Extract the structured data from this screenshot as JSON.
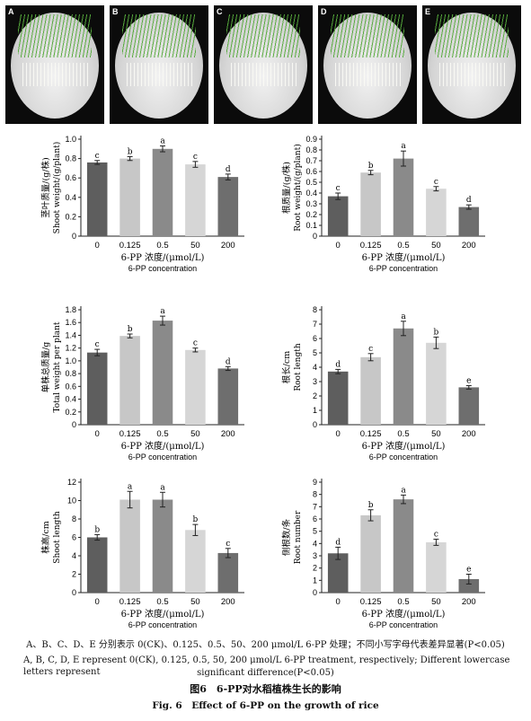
{
  "photos": [
    {
      "label": "A"
    },
    {
      "label": "B"
    },
    {
      "label": "C"
    },
    {
      "label": "D"
    },
    {
      "label": "E"
    }
  ],
  "chart_data": [
    {
      "type": "bar",
      "categories": [
        "0",
        "0.125",
        "0.5",
        "50",
        "200"
      ],
      "values": [
        0.76,
        0.8,
        0.9,
        0.74,
        0.61
      ],
      "errors": [
        0.02,
        0.02,
        0.03,
        0.03,
        0.03
      ],
      "letters": [
        "c",
        "b",
        "a",
        "c",
        "d"
      ],
      "colors": [
        "#5e5e5e",
        "#c7c7c7",
        "#8a8a8a",
        "#d6d6d6",
        "#6e6e6e"
      ],
      "ylabel_cn": "茎叶质量/(g/株)",
      "ylabel_en": "Shoot weight/(g/plant)",
      "xlabel_cn": "6-PP 浓度/(μmol/L)",
      "xlabel_en": "6-PP concentration",
      "ylim": [
        0,
        1.0
      ],
      "yticks": [
        "0",
        "0.2",
        "0.4",
        "0.6",
        "0.8",
        "1.0"
      ]
    },
    {
      "type": "bar",
      "categories": [
        "0",
        "0.125",
        "0.5",
        "50",
        "200"
      ],
      "values": [
        0.37,
        0.59,
        0.72,
        0.44,
        0.27
      ],
      "errors": [
        0.03,
        0.02,
        0.07,
        0.02,
        0.02
      ],
      "letters": [
        "c",
        "b",
        "a",
        "c",
        "d"
      ],
      "colors": [
        "#5e5e5e",
        "#c7c7c7",
        "#8a8a8a",
        "#d6d6d6",
        "#6e6e6e"
      ],
      "ylabel_cn": "根质量/(g/株)",
      "ylabel_en": "Root weight/(g/plant)",
      "xlabel_cn": "6-PP 浓度/(μmol/L)",
      "xlabel_en": "6-PP concentration",
      "ylim": [
        0,
        0.9
      ],
      "yticks": [
        "0",
        "0.1",
        "0.2",
        "0.3",
        "0.4",
        "0.5",
        "0.6",
        "0.7",
        "0.8",
        "0.9"
      ]
    },
    {
      "type": "bar",
      "categories": [
        "0",
        "0.125",
        "0.5",
        "50",
        "200"
      ],
      "values": [
        1.13,
        1.39,
        1.63,
        1.17,
        0.88
      ],
      "errors": [
        0.05,
        0.03,
        0.07,
        0.03,
        0.03
      ],
      "letters": [
        "c",
        "b",
        "a",
        "c",
        "d"
      ],
      "colors": [
        "#5e5e5e",
        "#c7c7c7",
        "#8a8a8a",
        "#d6d6d6",
        "#6e6e6e"
      ],
      "ylabel_cn": "单株总质量/g",
      "ylabel_en": "Total weight per plant",
      "xlabel_cn": "6-PP 浓度/(μmol/L)",
      "xlabel_en": "6-PP concentration",
      "ylim": [
        0,
        1.8
      ],
      "yticks": [
        "0",
        "0.2",
        "0.4",
        "0.6",
        "0.8",
        "1.0",
        "1.2",
        "1.4",
        "1.6",
        "1.8"
      ]
    },
    {
      "type": "bar",
      "categories": [
        "0",
        "0.125",
        "0.5",
        "50",
        "200"
      ],
      "values": [
        3.7,
        4.7,
        6.7,
        5.7,
        2.6
      ],
      "errors": [
        0.15,
        0.25,
        0.5,
        0.4,
        0.12
      ],
      "letters": [
        "d",
        "c",
        "a",
        "b",
        "e"
      ],
      "colors": [
        "#5e5e5e",
        "#c7c7c7",
        "#8a8a8a",
        "#d6d6d6",
        "#6e6e6e"
      ],
      "ylabel_cn": "根长/cm",
      "ylabel_en": "Root length",
      "xlabel_cn": "6-PP 浓度/(μmol/L)",
      "xlabel_en": "6-PP concentration",
      "ylim": [
        0,
        8
      ],
      "yticks": [
        "0",
        "1",
        "2",
        "3",
        "4",
        "5",
        "6",
        "7",
        "8"
      ]
    },
    {
      "type": "bar",
      "categories": [
        "0",
        "0.125",
        "0.5",
        "50",
        "200"
      ],
      "values": [
        6.0,
        10.1,
        10.1,
        6.8,
        4.3
      ],
      "errors": [
        0.3,
        0.9,
        0.8,
        0.6,
        0.5
      ],
      "letters": [
        "b",
        "a",
        "a",
        "b",
        "c"
      ],
      "colors": [
        "#5e5e5e",
        "#c7c7c7",
        "#8a8a8a",
        "#d6d6d6",
        "#6e6e6e"
      ],
      "ylabel_cn": "株高/cm",
      "ylabel_en": "Shoot length",
      "xlabel_cn": "6-PP 浓度/(μmol/L)",
      "xlabel_en": "6-PP concentration",
      "ylim": [
        0,
        12
      ],
      "yticks": [
        "0",
        "2",
        "4",
        "6",
        "8",
        "10",
        "12"
      ]
    },
    {
      "type": "bar",
      "categories": [
        "0",
        "0.125",
        "0.5",
        "50",
        "200"
      ],
      "values": [
        3.2,
        6.3,
        7.6,
        4.1,
        1.1
      ],
      "errors": [
        0.5,
        0.45,
        0.35,
        0.25,
        0.4
      ],
      "letters": [
        "d",
        "b",
        "a",
        "c",
        "e"
      ],
      "colors": [
        "#5e5e5e",
        "#c7c7c7",
        "#8a8a8a",
        "#d6d6d6",
        "#6e6e6e"
      ],
      "ylabel_cn": "侧根数/条",
      "ylabel_en": "Root number",
      "xlabel_cn": "6-PP 浓度/(μmol/L)",
      "xlabel_en": "6-PP concentration",
      "ylim": [
        0,
        9
      ],
      "yticks": [
        "0",
        "1",
        "2",
        "3",
        "4",
        "5",
        "6",
        "7",
        "8",
        "9"
      ]
    }
  ],
  "caption": {
    "note_cn": "A、B、C、D、E 分别表示 0(CK)、0.125、0.5、50、200 μmol/L 6-PP 处理；不同小写字母代表差异显著(P<0.05)",
    "note_en_1": "A, B, C, D, E represent 0(CK), 0.125, 0.5, 50, 200 μmol/L 6-PP treatment, respectively; Different lowercase letters represent",
    "note_en_2": "significant difference(P<0.05)",
    "figure_cn": "图6　6-PP对水稻植株生长的影响",
    "figure_en": "Fig. 6　Effect of 6-PP on the growth of rice"
  }
}
